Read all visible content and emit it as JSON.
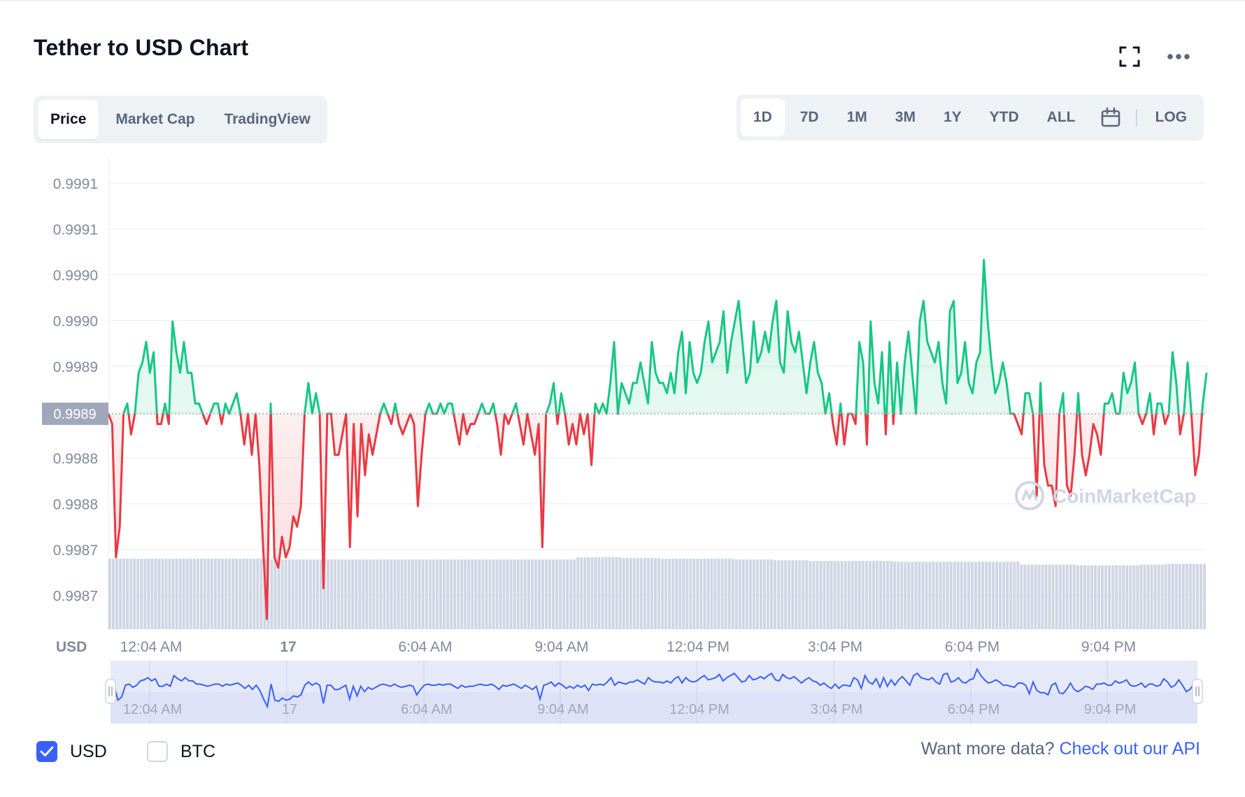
{
  "title": "Tether to USD Chart",
  "icons": {
    "fullscreen": "fullscreen-icon",
    "more": "more-horizontal-icon",
    "calendar": "calendar-icon",
    "checkmark": "check-icon"
  },
  "tabs": [
    {
      "label": "Price",
      "active": true
    },
    {
      "label": "Market Cap",
      "active": false
    },
    {
      "label": "TradingView",
      "active": false
    }
  ],
  "ranges": [
    {
      "label": "1D",
      "active": true
    },
    {
      "label": "7D",
      "active": false
    },
    {
      "label": "1M",
      "active": false
    },
    {
      "label": "3M",
      "active": false
    },
    {
      "label": "1Y",
      "active": false
    },
    {
      "label": "YTD",
      "active": false
    },
    {
      "label": "ALL",
      "active": false
    }
  ],
  "log_label": "LOG",
  "colors": {
    "up": "#16c784",
    "down": "#ea3943",
    "accent": "#3861fb",
    "baseline_label_bg": "#a1a7bb",
    "volume": "#cfd6e4"
  },
  "legend": [
    {
      "label": "USD",
      "checked": true
    },
    {
      "label": "BTC",
      "checked": false
    }
  ],
  "footer": {
    "prefix": "Want more data? ",
    "link": "Check out our API"
  },
  "watermark": "CoinMarketCap",
  "chart_data": {
    "type": "line",
    "ylabel": "USD",
    "y_ticks": [
      "0.9991",
      "0.9991",
      "0.9990",
      "0.9990",
      "0.9989",
      "0.9989",
      "0.9988",
      "0.9988",
      "0.9987",
      "0.9987"
    ],
    "x_ticks": [
      "12:04 AM",
      "17",
      "6:04 AM",
      "9:04 AM",
      "12:04 PM",
      "3:04 PM",
      "6:04 PM",
      "9:04 PM"
    ],
    "baseline": 0.99888,
    "baseline_label": "0.9989",
    "ylim": [
      0.99867,
      0.99913
    ],
    "grid": true,
    "series": [
      {
        "values": [
          0.99888,
          0.99887,
          0.99874,
          0.99877,
          0.99888,
          0.99889,
          0.99886,
          0.99888,
          0.99892,
          0.99893,
          0.99895,
          0.99892,
          0.99894,
          0.99887,
          0.99887,
          0.99889,
          0.99887,
          0.99897,
          0.99894,
          0.99892,
          0.99895,
          0.99892,
          0.99892,
          0.99889,
          0.99889,
          0.99888,
          0.99887,
          0.99888,
          0.99889,
          0.99889,
          0.99887,
          0.99889,
          0.99888,
          0.99889,
          0.9989,
          0.99888,
          0.99885,
          0.99888,
          0.99884,
          0.99888,
          0.99883,
          0.99875,
          0.99868,
          0.99889,
          0.99874,
          0.99873,
          0.99876,
          0.99874,
          0.99875,
          0.99878,
          0.99877,
          0.99879,
          0.99888,
          0.99891,
          0.99888,
          0.9989,
          0.99888,
          0.99871,
          0.99888,
          0.99888,
          0.99884,
          0.99884,
          0.99886,
          0.99888,
          0.99875,
          0.99887,
          0.99878,
          0.99887,
          0.99882,
          0.99886,
          0.99884,
          0.99886,
          0.99888,
          0.99889,
          0.99888,
          0.99887,
          0.99889,
          0.99887,
          0.99886,
          0.99887,
          0.99888,
          0.99887,
          0.99879,
          0.99884,
          0.99888,
          0.99889,
          0.99888,
          0.99888,
          0.99889,
          0.99888,
          0.99889,
          0.99889,
          0.99887,
          0.99885,
          0.99888,
          0.99886,
          0.99887,
          0.99887,
          0.99888,
          0.99889,
          0.99888,
          0.99888,
          0.99889,
          0.99887,
          0.99884,
          0.99888,
          0.99887,
          0.99888,
          0.99889,
          0.99887,
          0.99885,
          0.99888,
          0.99886,
          0.99884,
          0.99887,
          0.99875,
          0.99888,
          0.99889,
          0.99891,
          0.99887,
          0.9989,
          0.99888,
          0.99885,
          0.99887,
          0.99885,
          0.99888,
          0.99886,
          0.99888,
          0.99883,
          0.99889,
          0.99888,
          0.99889,
          0.99888,
          0.99891,
          0.99895,
          0.99888,
          0.99891,
          0.9989,
          0.99889,
          0.99891,
          0.99891,
          0.99893,
          0.99891,
          0.99889,
          0.99895,
          0.99892,
          0.99891,
          0.99891,
          0.9989,
          0.99892,
          0.9989,
          0.99894,
          0.99896,
          0.9989,
          0.99895,
          0.99892,
          0.99891,
          0.99892,
          0.99895,
          0.99897,
          0.99893,
          0.99894,
          0.99895,
          0.99898,
          0.99892,
          0.99895,
          0.99897,
          0.99899,
          0.99895,
          0.99891,
          0.99892,
          0.99897,
          0.99893,
          0.99894,
          0.99896,
          0.99894,
          0.99897,
          0.99899,
          0.99893,
          0.99892,
          0.99898,
          0.99895,
          0.99894,
          0.99896,
          0.99893,
          0.9989,
          0.99893,
          0.99895,
          0.99892,
          0.99891,
          0.99888,
          0.9989,
          0.99887,
          0.99885,
          0.99889,
          0.99885,
          0.99888,
          0.99888,
          0.99887,
          0.99895,
          0.99893,
          0.99885,
          0.99897,
          0.99891,
          0.99889,
          0.99894,
          0.99886,
          0.99895,
          0.99887,
          0.99893,
          0.99888,
          0.99893,
          0.99896,
          0.99892,
          0.99888,
          0.99897,
          0.99899,
          0.99895,
          0.99894,
          0.99893,
          0.99895,
          0.99891,
          0.99889,
          0.99898,
          0.99899,
          0.99891,
          0.99892,
          0.99895,
          0.99891,
          0.9989,
          0.99893,
          0.99894,
          0.99903,
          0.99897,
          0.99893,
          0.9989,
          0.99891,
          0.99893,
          0.99891,
          0.99888,
          0.99888,
          0.99887,
          0.99886,
          0.9989,
          0.9989,
          0.99888,
          0.9988,
          0.99891,
          0.99883,
          0.99881,
          0.99881,
          0.99879,
          0.99888,
          0.9989,
          0.99881,
          0.9988,
          0.99884,
          0.9989,
          0.99884,
          0.99882,
          0.99884,
          0.99887,
          0.99886,
          0.99884,
          0.99889,
          0.99889,
          0.9989,
          0.99888,
          0.99888,
          0.99892,
          0.9989,
          0.99891,
          0.99893,
          0.99888,
          0.99887,
          0.99888,
          0.9989,
          0.99886,
          0.99889,
          0.99889,
          0.99887,
          0.99888,
          0.99894,
          0.99891,
          0.99886,
          0.99888,
          0.99893,
          0.99888,
          0.99882,
          0.99884,
          0.99889,
          0.99892
        ]
      }
    ],
    "volume": [
      0.96,
      0.96,
      0.96,
      0.96,
      0.96,
      0.96,
      0.96,
      0.96,
      0.96,
      0.96,
      0.96,
      0.96,
      0.96,
      0.96,
      0.96,
      0.96,
      0.96,
      0.96,
      0.96,
      0.96,
      0.96,
      0.96,
      0.96,
      0.96,
      0.96,
      0.96,
      0.96,
      0.96,
      0.96,
      0.96,
      0.96,
      0.96,
      0.96,
      0.96,
      0.96,
      0.96,
      0.96,
      0.96,
      0.96,
      0.96,
      0.96,
      0.96,
      0.96,
      0.96,
      0.95,
      0.95,
      0.95,
      0.95,
      0.95,
      0.95,
      0.95,
      0.95,
      0.95,
      0.95,
      0.95,
      0.95,
      0.95,
      0.95,
      0.95,
      0.95,
      0.95,
      0.95,
      0.95,
      0.95,
      0.95,
      0.95,
      0.95,
      0.95,
      0.95,
      0.95,
      0.95,
      0.95,
      0.95,
      0.95,
      0.95,
      0.95,
      0.95,
      0.95,
      0.95,
      0.95,
      0.95,
      0.95,
      0.95,
      0.95,
      0.95,
      0.95,
      0.95,
      0.95,
      0.95,
      0.95,
      0.95,
      0.95,
      0.95,
      0.95,
      0.95,
      0.95,
      0.95,
      0.95,
      0.95,
      0.95,
      0.95,
      0.95,
      0.95,
      0.95,
      0.95,
      0.95,
      0.95,
      0.95,
      0.95,
      0.95,
      0.95,
      0.95,
      0.95,
      0.95,
      0.95,
      0.95,
      0.95,
      0.95,
      0.95,
      0.95,
      0.95,
      0.95,
      0.95,
      0.95,
      0.95,
      0.95,
      0.95,
      0.95,
      0.95,
      0.95,
      0.95,
      0.95,
      0.95,
      0.98,
      0.98,
      0.98,
      0.98,
      0.98,
      0.98,
      0.98,
      0.98,
      0.98,
      0.98,
      0.98,
      0.98,
      0.98,
      0.97,
      0.97,
      0.97,
      0.97,
      0.97,
      0.97,
      0.97,
      0.97,
      0.97,
      0.97,
      0.97,
      0.96,
      0.96,
      0.96,
      0.96,
      0.96,
      0.96,
      0.96,
      0.96,
      0.96,
      0.96,
      0.96,
      0.96,
      0.96,
      0.96,
      0.96,
      0.96,
      0.96,
      0.96,
      0.96,
      0.96,
      0.96,
      0.95,
      0.95,
      0.95,
      0.95,
      0.95,
      0.95,
      0.95,
      0.95,
      0.95,
      0.95,
      0.95,
      0.94,
      0.94,
      0.94,
      0.94,
      0.94,
      0.94,
      0.94,
      0.94,
      0.94,
      0.94,
      0.93,
      0.93,
      0.93,
      0.93,
      0.93,
      0.93,
      0.93,
      0.93,
      0.93,
      0.93,
      0.93,
      0.93,
      0.93,
      0.93,
      0.93,
      0.93,
      0.93,
      0.93,
      0.93,
      0.93,
      0.93,
      0.93,
      0.93,
      0.93,
      0.92,
      0.92,
      0.92,
      0.92,
      0.92,
      0.92,
      0.92,
      0.92,
      0.92,
      0.92,
      0.92,
      0.92,
      0.92,
      0.92,
      0.92,
      0.92,
      0.92,
      0.92,
      0.92,
      0.92,
      0.92,
      0.92,
      0.92,
      0.92,
      0.92,
      0.92,
      0.92,
      0.92,
      0.92,
      0.92,
      0.92,
      0.92,
      0.92,
      0.92,
      0.92,
      0.92,
      0.88,
      0.88,
      0.88,
      0.88,
      0.88,
      0.88,
      0.88,
      0.88,
      0.88,
      0.88,
      0.88,
      0.88,
      0.88,
      0.88,
      0.88,
      0.88,
      0.87,
      0.87,
      0.87,
      0.87,
      0.87,
      0.87,
      0.87,
      0.87,
      0.87,
      0.87,
      0.87,
      0.87,
      0.87,
      0.87,
      0.87,
      0.87,
      0.87,
      0.87,
      0.88,
      0.88,
      0.88,
      0.88,
      0.88,
      0.88,
      0.88,
      0.89,
      0.89,
      0.89,
      0.89,
      0.89,
      0.89,
      0.89,
      0.89,
      0.89,
      0.89,
      0.89,
      0.89
    ]
  }
}
